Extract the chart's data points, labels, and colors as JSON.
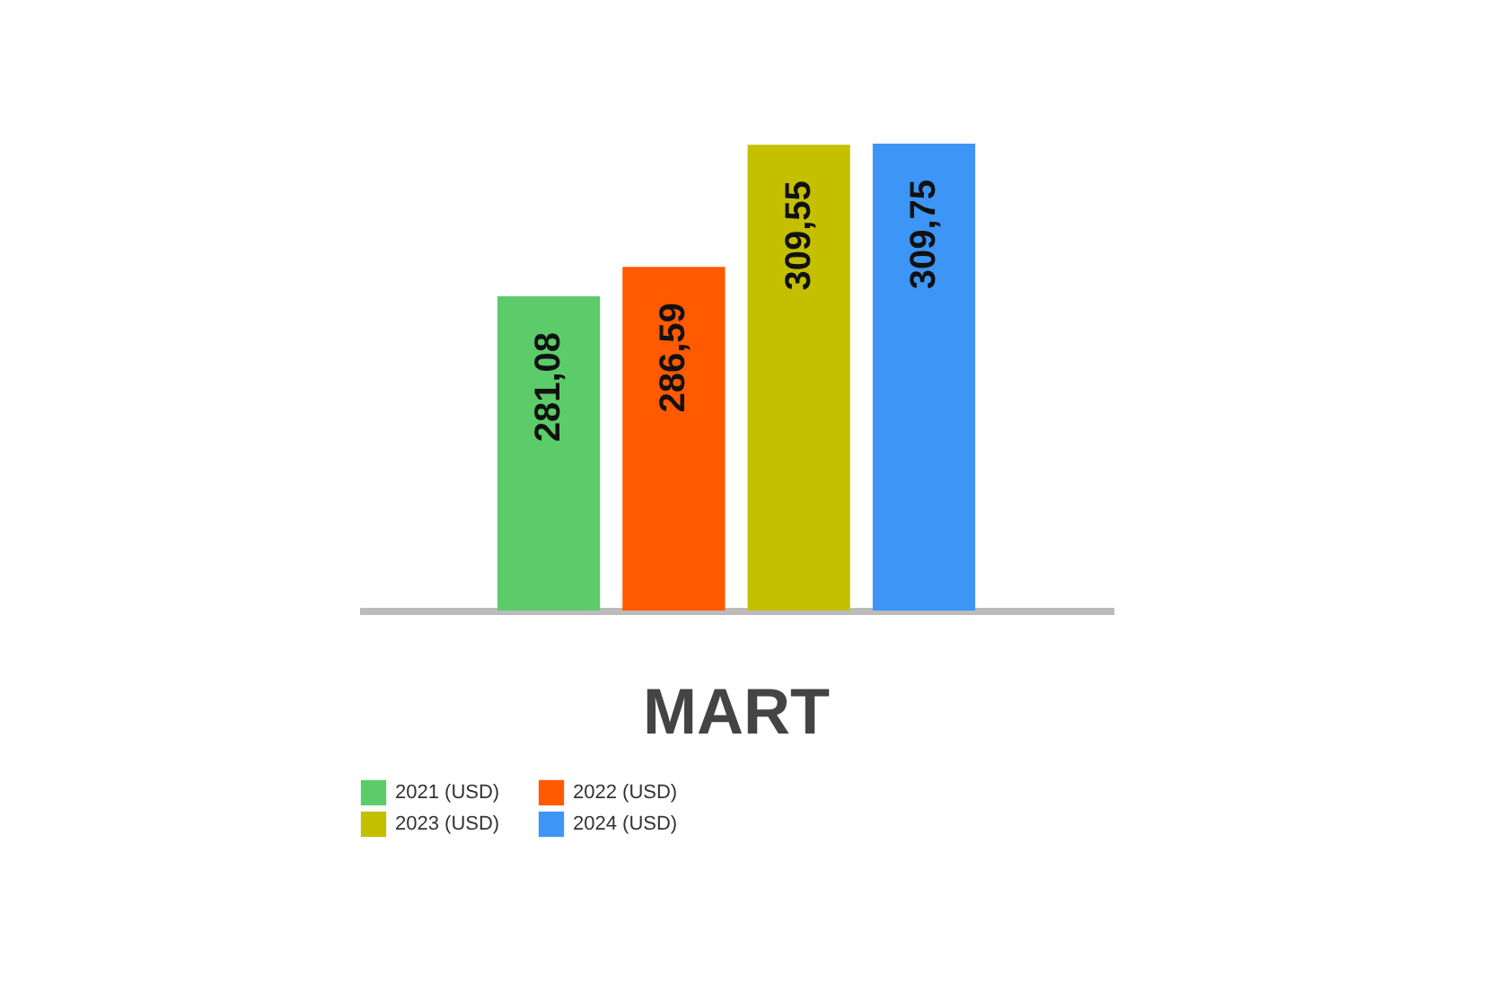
{
  "chart_data": {
    "type": "bar",
    "categories": [
      "MART"
    ],
    "ylim": [
      222,
      309.75
    ],
    "tick_labels": "x",
    "grid": false,
    "legend": "bottom",
    "data_labels": true,
    "series": [
      {
        "name": "2021 (USD)",
        "color": "#5ccc6a",
        "values": [
          281.08
        ],
        "value_labels": [
          "281,08"
        ]
      },
      {
        "name": "2022 (USD)",
        "color": "#ff5a00",
        "values": [
          286.59
        ],
        "value_labels": [
          "286,59"
        ]
      },
      {
        "name": "2023 (USD)",
        "color": "#c4c000",
        "values": [
          309.55
        ],
        "value_labels": [
          "309,55"
        ]
      },
      {
        "name": "2024 (USD)",
        "color": "#3d95f5",
        "values": [
          309.75
        ],
        "value_labels": [
          "309,75"
        ]
      }
    ]
  }
}
